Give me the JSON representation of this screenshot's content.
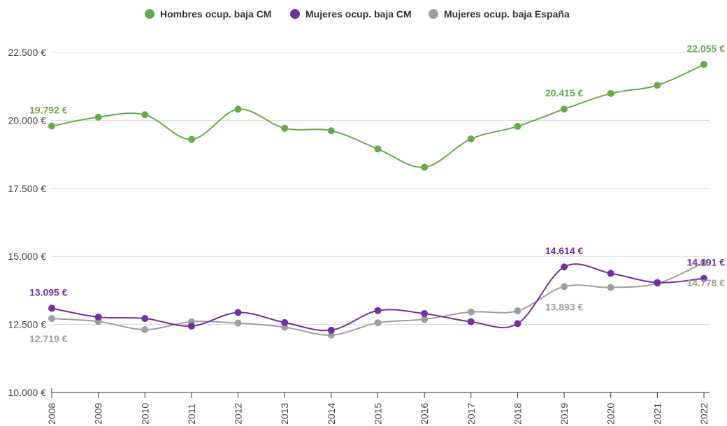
{
  "chart_data": {
    "type": "line",
    "title": "",
    "xlabel": "",
    "ylabel": "",
    "categories": [
      "2008",
      "2009",
      "2010",
      "2011",
      "2012",
      "2013",
      "2014",
      "2015",
      "2016",
      "2017",
      "2018",
      "2019",
      "2020",
      "2021",
      "2022"
    ],
    "ylim": [
      10000,
      23500
    ],
    "y_ticks": [
      {
        "value": 10000,
        "label": "10.000 €"
      },
      {
        "value": 12500,
        "label": "12.500 €"
      },
      {
        "value": 15000,
        "label": "15.000 €"
      },
      {
        "value": 17500,
        "label": "17.500 €"
      },
      {
        "value": 20000,
        "label": "20.000 €"
      },
      {
        "value": 22500,
        "label": "22.500 €"
      }
    ],
    "grid": true,
    "legend_position": "top-center",
    "series": [
      {
        "name": "Hombres ocup. baja CM",
        "color": "#6aa84f",
        "values": [
          19792,
          20120,
          20210,
          19300,
          20410,
          19710,
          19620,
          18950,
          18280,
          19320,
          19780,
          20415,
          20990,
          21290,
          22055
        ],
        "labels": [
          {
            "index": 0,
            "text": "19.792 €",
            "position": "above"
          },
          {
            "index": 11,
            "text": "20.415 €",
            "position": "above"
          },
          {
            "index": 14,
            "text": "22.055 €",
            "position": "above"
          }
        ]
      },
      {
        "name": "Mujeres ocup. baja CM",
        "color": "#7030a0",
        "values": [
          13095,
          12770,
          12720,
          12440,
          12940,
          12570,
          12290,
          13010,
          12900,
          12600,
          12530,
          14614,
          14380,
          14040,
          14191
        ],
        "labels": [
          {
            "index": 0,
            "text": "13.095 €",
            "position": "above"
          },
          {
            "index": 11,
            "text": "14.614 €",
            "position": "above"
          },
          {
            "index": 14,
            "text": "14.191 €",
            "position": "above"
          }
        ]
      },
      {
        "name": "Mujeres ocup. baja España",
        "color": "#9e9e9e",
        "values": [
          12719,
          12610,
          12310,
          12600,
          12550,
          12400,
          12110,
          12560,
          12690,
          12960,
          13000,
          13893,
          13860,
          14010,
          14778
        ],
        "labels": [
          {
            "index": 0,
            "text": "12.719 €",
            "position": "below"
          },
          {
            "index": 11,
            "text": "13.893 €",
            "position": "below"
          },
          {
            "index": 14,
            "text": "14.778 €",
            "position": "below"
          }
        ]
      }
    ]
  }
}
